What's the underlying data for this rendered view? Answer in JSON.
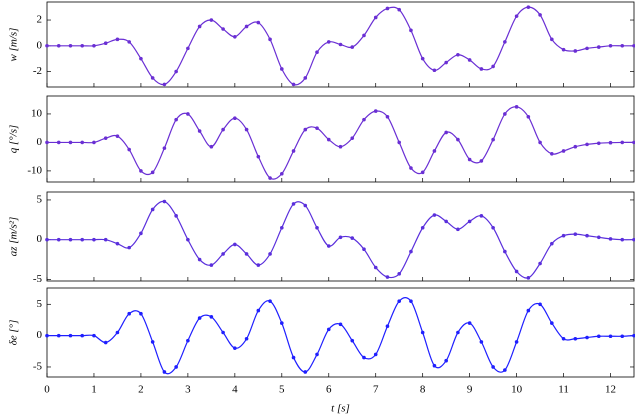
{
  "chart_data": [
    {
      "type": "line",
      "ylabel": "w [m/s]",
      "xlim": [
        0,
        12.5
      ],
      "ylim": [
        -3.2,
        3.4
      ],
      "yticks": [
        -2,
        0,
        2
      ],
      "x": [
        0,
        0.25,
        0.5,
        0.75,
        1,
        1.25,
        1.5,
        1.75,
        2,
        2.25,
        2.5,
        2.75,
        3,
        3.25,
        3.5,
        3.75,
        4,
        4.25,
        4.5,
        4.75,
        5,
        5.25,
        5.5,
        5.75,
        6,
        6.25,
        6.5,
        6.75,
        7,
        7.25,
        7.5,
        7.75,
        8,
        8.25,
        8.5,
        8.75,
        9,
        9.25,
        9.5,
        9.75,
        10,
        10.25,
        10.5,
        10.75,
        11,
        11.25,
        11.5,
        11.75,
        12,
        12.25,
        12.5
      ],
      "series": [
        {
          "color": "#6a2fd4",
          "values": [
            0,
            0,
            0,
            0,
            0,
            0.2,
            0.5,
            0.3,
            -1.0,
            -2.5,
            -3.0,
            -2.0,
            -0.2,
            1.5,
            2.0,
            1.3,
            0.7,
            1.5,
            1.8,
            0.5,
            -1.8,
            -3.0,
            -2.5,
            -0.5,
            0.3,
            0.1,
            -0.1,
            0.8,
            2.2,
            2.9,
            2.8,
            1.2,
            -1.0,
            -1.9,
            -1.3,
            -0.7,
            -1.1,
            -1.8,
            -1.6,
            0.3,
            2.3,
            3.0,
            2.4,
            0.5,
            -0.3,
            -0.4,
            -0.2,
            -0.1,
            0,
            0,
            0
          ]
        }
      ]
    },
    {
      "type": "line",
      "ylabel": "q [°/s]",
      "xlim": [
        0,
        12.5
      ],
      "ylim": [
        -13.9,
        16.3
      ],
      "yticks": [
        -10,
        0,
        10
      ],
      "x": [
        0,
        0.25,
        0.5,
        0.75,
        1,
        1.25,
        1.5,
        1.75,
        2,
        2.25,
        2.5,
        2.75,
        3,
        3.25,
        3.5,
        3.75,
        4,
        4.25,
        4.5,
        4.75,
        5,
        5.25,
        5.5,
        5.75,
        6,
        6.25,
        6.5,
        6.75,
        7,
        7.25,
        7.5,
        7.75,
        8,
        8.25,
        8.5,
        8.75,
        9,
        9.25,
        9.5,
        9.75,
        10,
        10.25,
        10.5,
        10.75,
        11,
        11.25,
        11.5,
        11.75,
        12,
        12.25,
        12.5
      ],
      "series": [
        {
          "color": "#6a2fd4",
          "values": [
            0,
            0,
            0,
            0,
            0,
            1.5,
            2.2,
            -2.5,
            -10,
            -10.5,
            -2,
            8,
            10,
            4,
            -1.5,
            4.5,
            8.5,
            4.5,
            -5,
            -12.5,
            -11,
            -3,
            4.5,
            5,
            1,
            -1.5,
            1.5,
            8,
            11,
            9,
            0,
            -9,
            -10.5,
            -3,
            3.5,
            1,
            -6,
            -6.5,
            1,
            10,
            12.5,
            9,
            0,
            -4,
            -3,
            -1.5,
            -0.7,
            -0.3,
            -0.1,
            0,
            0
          ]
        }
      ]
    },
    {
      "type": "line",
      "ylabel": "az [m/s²]",
      "xlim": [
        0,
        12.5
      ],
      "ylim": [
        -5.2,
        6
      ],
      "yticks": [
        -5,
        0,
        5
      ],
      "x": [
        0,
        0.25,
        0.5,
        0.75,
        1,
        1.25,
        1.5,
        1.75,
        2,
        2.25,
        2.5,
        2.75,
        3,
        3.25,
        3.5,
        3.75,
        4,
        4.25,
        4.5,
        4.75,
        5,
        5.25,
        5.5,
        5.75,
        6,
        6.25,
        6.5,
        6.75,
        7,
        7.25,
        7.5,
        7.75,
        8,
        8.25,
        8.5,
        8.75,
        9,
        9.25,
        9.5,
        9.75,
        10,
        10.25,
        10.5,
        10.75,
        11,
        11.25,
        11.5,
        11.75,
        12,
        12.25,
        12.5
      ],
      "series": [
        {
          "color": "#5a2fdc",
          "values": [
            0,
            0,
            0,
            0,
            0,
            0,
            -0.5,
            -1.0,
            0.8,
            3.8,
            4.8,
            3,
            0,
            -2.5,
            -3.2,
            -1.8,
            -0.6,
            -1.8,
            -3.2,
            -1.8,
            1.5,
            4.5,
            4.3,
            1.5,
            -0.8,
            0.3,
            0.2,
            -1.2,
            -3.5,
            -4.7,
            -4.3,
            -1.5,
            1.5,
            3.1,
            2.3,
            1.3,
            2.3,
            3,
            1.5,
            -1.5,
            -4,
            -4.8,
            -3,
            -0.5,
            0.5,
            0.7,
            0.5,
            0.3,
            0.1,
            0,
            0
          ]
        }
      ]
    },
    {
      "type": "line",
      "ylabel": "δe [°]",
      "xlabel": "t [s]",
      "xlim": [
        0,
        12.5
      ],
      "ylim": [
        -6.6,
        7.6
      ],
      "yticks": [
        -5,
        0,
        5
      ],
      "xticks": [
        0,
        1,
        2,
        3,
        4,
        5,
        6,
        7,
        8,
        9,
        10,
        11,
        12
      ],
      "x": [
        0,
        0.25,
        0.5,
        0.75,
        1,
        1.25,
        1.5,
        1.75,
        2,
        2.25,
        2.5,
        2.75,
        3,
        3.25,
        3.5,
        3.75,
        4,
        4.25,
        4.5,
        4.75,
        5,
        5.25,
        5.5,
        5.75,
        6,
        6.25,
        6.5,
        6.75,
        7,
        7.25,
        7.5,
        7.75,
        8,
        8.25,
        8.5,
        8.75,
        9,
        9.25,
        9.5,
        9.75,
        10,
        10.25,
        10.5,
        10.75,
        11,
        11.25,
        11.5,
        11.75,
        12,
        12.25,
        12.5
      ],
      "series": [
        {
          "color": "#1f1fff",
          "values": [
            0,
            0,
            0,
            0,
            0,
            -1.1,
            0.5,
            3.5,
            3.5,
            -1,
            -5.8,
            -5,
            -0.8,
            2.8,
            3,
            0.5,
            -2,
            -0.5,
            4,
            5.5,
            2,
            -3.5,
            -5.8,
            -3,
            1,
            1.8,
            -0.8,
            -3.5,
            -3,
            1.5,
            5.5,
            5.5,
            0.5,
            -4.8,
            -4,
            0.5,
            2,
            -1,
            -5,
            -5.5,
            -1,
            4,
            5,
            2,
            -0.5,
            -0.5,
            -0.3,
            -0.1,
            -0.1,
            -0.1,
            0
          ]
        }
      ]
    }
  ]
}
